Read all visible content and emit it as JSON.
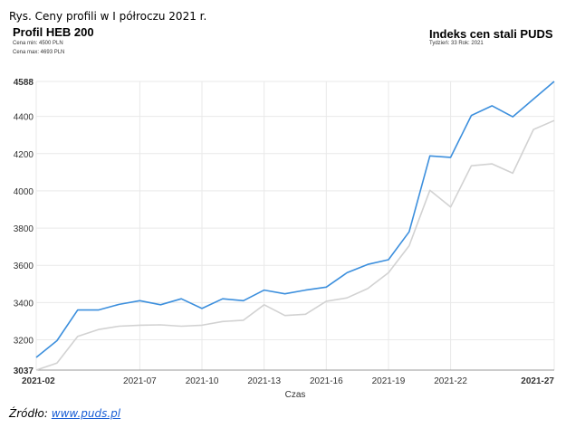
{
  "caption": "Rys. Ceny profili w I półroczu 2021 r.",
  "header_left": {
    "title": "Profil HEB 200",
    "min_label": "Cena min: 4500 PLN",
    "max_label": "Cena max: 4693 PLN"
  },
  "header_right": {
    "title": "Indeks cen stali PUDS",
    "subtitle": "Tydzień: 33  Rok: 2021"
  },
  "source": {
    "prefix": "Źródło: ",
    "link": "www.puds.pl"
  },
  "colors": {
    "series_blue": "#3c8fdd",
    "series_gray": "#d2d2d2",
    "grid": "#e9e9e9"
  },
  "chart_data": {
    "type": "line",
    "title": "",
    "xlabel": "Czas",
    "ylabel": "",
    "ylim": [
      3037,
      4588
    ],
    "y_ticks": [
      "3037",
      "3200",
      "3400",
      "3600",
      "3800",
      "4000",
      "4200",
      "4400",
      "4588"
    ],
    "x_ticks": [
      "2021-02",
      "2021-07",
      "2021-10",
      "2021-13",
      "2021-16",
      "2021-19",
      "2021-22",
      "2021-27"
    ],
    "x_weeks": [
      2,
      3,
      4,
      5,
      6,
      7,
      8,
      9,
      10,
      11,
      12,
      13,
      14,
      15,
      16,
      17,
      18,
      19,
      20,
      21,
      22,
      23,
      24,
      25,
      26,
      27
    ],
    "series": [
      {
        "values": [
          3105,
          3195,
          3360,
          3360,
          3390,
          3410,
          3388,
          3420,
          3368,
          3420,
          3410,
          3467,
          3447,
          3467,
          3483,
          3560,
          3605,
          3630,
          3780,
          4188,
          4180,
          4405,
          4457,
          4398,
          4493,
          4588
        ]
      },
      {
        "values": [
          3037,
          3075,
          3218,
          3255,
          3273,
          3278,
          3280,
          3273,
          3278,
          3298,
          3305,
          3388,
          3330,
          3337,
          3407,
          3425,
          3475,
          3560,
          3705,
          4003,
          3913,
          4135,
          4145,
          4095,
          4330,
          4378
        ]
      }
    ]
  }
}
